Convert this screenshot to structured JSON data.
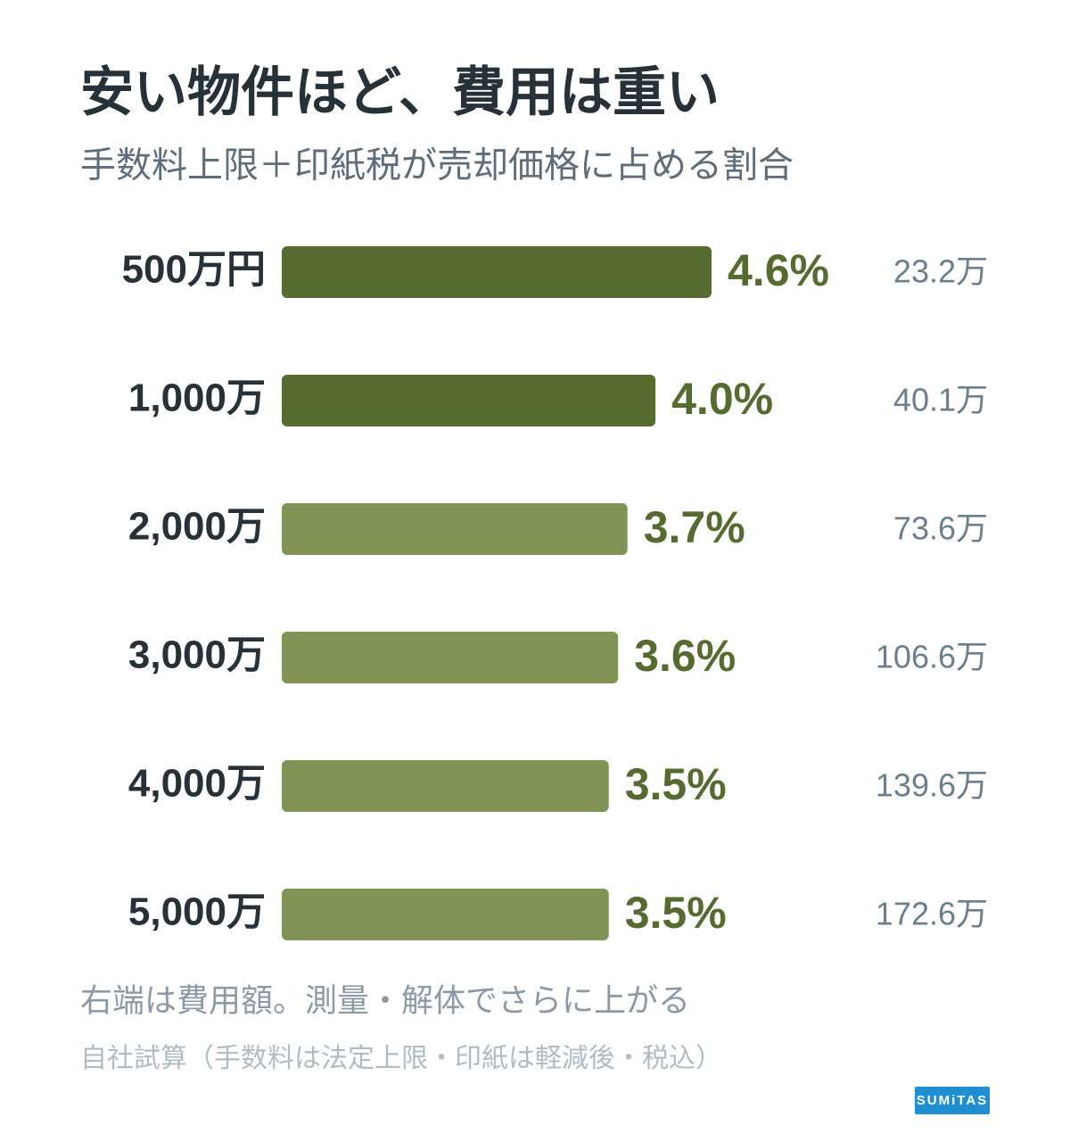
{
  "chart_data": {
    "type": "bar",
    "orientation": "horizontal",
    "title": "安い物件ほど、費用は重い",
    "subtitle": "手数料上限＋印紙税が売却価格に占める割合",
    "categories": [
      "500万円",
      "1,000万",
      "2,000万",
      "3,000万",
      "4,000万",
      "5,000万"
    ],
    "values": [
      4.6,
      4.0,
      3.7,
      3.6,
      3.5,
      3.5
    ],
    "value_labels": [
      "4.6%",
      "4.0%",
      "3.7%",
      "3.6%",
      "3.5%",
      "3.5%"
    ],
    "colors": [
      "#556b2f",
      "#556b2f",
      "#7f9455",
      "#7f9455",
      "#7f9455",
      "#7f9455"
    ],
    "amounts": [
      "23.2万",
      "40.1万",
      "73.6万",
      "106.6万",
      "139.6万",
      "172.6万"
    ],
    "notes": [
      "右端は費用額。測量・解体でさらに上がる",
      "自社試算（手数料は法定上限・印紙は軽減後・税込）"
    ],
    "logo": "SUMiTAS"
  }
}
